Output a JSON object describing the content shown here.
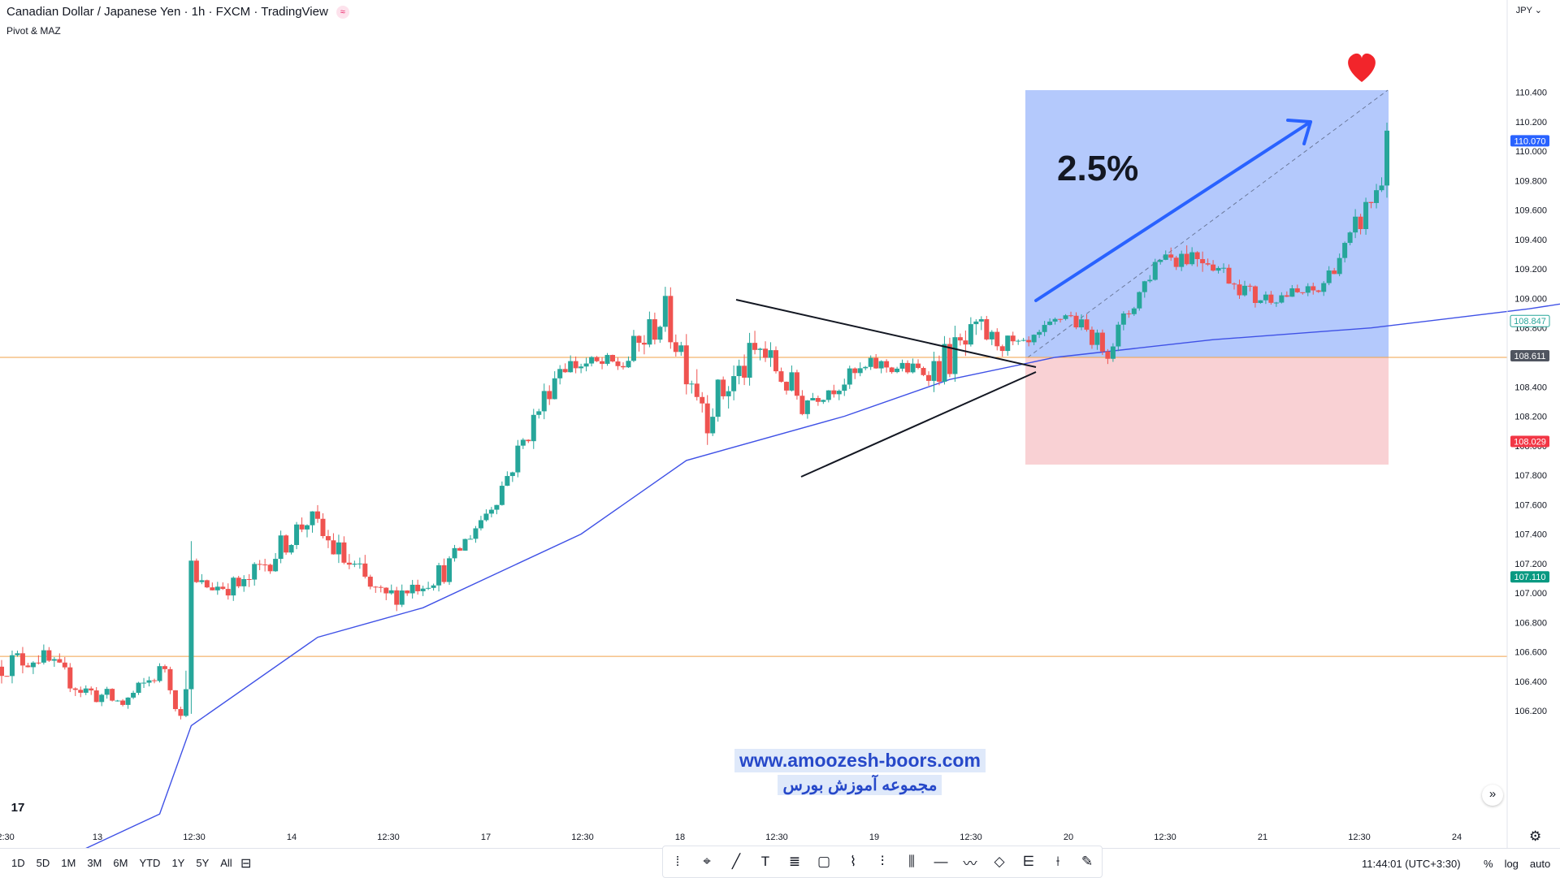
{
  "header": {
    "title": "Canadian Dollar / Japanese Yen · 1h · FXCM · TradingView",
    "indicator": "Pivot & MAZ",
    "currency": "JPY"
  },
  "bottom": {
    "ranges": [
      "1D",
      "5D",
      "1M",
      "3M",
      "6M",
      "YTD",
      "1Y",
      "5Y",
      "All"
    ],
    "clock": "11:44:01 (UTC+3:30)",
    "scale_options": [
      "%",
      "log",
      "auto"
    ]
  },
  "tools": [
    "dots-handle-icon",
    "pin-icon",
    "trendline-icon",
    "text-icon",
    "fib-icon",
    "rectangle-icon",
    "brush-icon",
    "parallel-channel-icon",
    "pitchfork-icon",
    "horizontal-line-icon",
    "path-icon",
    "ellipse-icon",
    "long-position-icon",
    "vertical-line-icon",
    "pen-icon"
  ],
  "watermark": {
    "url": "www.amoozesh-boors.com",
    "persian": "مجموعه آموزش بورس"
  },
  "annotation": {
    "percent": "2.5%"
  },
  "colors": {
    "up": "#26a69a",
    "down": "#ef5350",
    "ma": "#3f51e6",
    "hline": "#f0a24a",
    "profit": "#a7c0fb",
    "loss": "#f9d1d4",
    "arrow": "#2962ff"
  },
  "chart_data": {
    "type": "candlestick",
    "symbol": "CADJPY",
    "interval": "1h",
    "price_range": [
      106.1,
      110.5
    ],
    "y_ticks": [
      "106.200",
      "106.400",
      "106.600",
      "106.800",
      "107.000",
      "107.200",
      "107.400",
      "107.600",
      "107.800",
      "108.000",
      "108.200",
      "108.400",
      "108.600",
      "108.800",
      "109.000",
      "109.200",
      "109.400",
      "109.600",
      "109.800",
      "110.000",
      "110.200",
      "110.400"
    ],
    "x_ticks": [
      "12:30",
      "13",
      "12:30",
      "14",
      "12:30",
      "17",
      "12:30",
      "18",
      "12:30",
      "19",
      "12:30",
      "20",
      "12:30",
      "21",
      "12:30",
      "24"
    ],
    "price_labels": [
      {
        "value": "110.070",
        "color": "#2962ff"
      },
      {
        "value": "108.847",
        "color": "#ffffff",
        "text_color": "#26a69a",
        "border": "#26a69a"
      },
      {
        "value": "108.611",
        "color": "#505560"
      },
      {
        "value": "108.029",
        "color": "#f23645"
      },
      {
        "value": "107.110",
        "color": "#089981"
      }
    ],
    "horizontal_lines": [
      108.6,
      106.57
    ],
    "position": {
      "entry": 108.611,
      "target": 110.07,
      "stop": 108.029
    },
    "segments": [
      {
        "n": 8,
        "from": 106.5,
        "to": 106.58,
        "vol": 0.09
      },
      {
        "n": 8,
        "from": 106.58,
        "to": 106.35,
        "vol": 0.07
      },
      {
        "n": 8,
        "from": 106.35,
        "to": 106.25,
        "vol": 0.07
      },
      {
        "n": 8,
        "from": 106.25,
        "to": 106.5,
        "vol": 0.06
      },
      {
        "n": 3,
        "from": 106.5,
        "to": 106.15,
        "vol": 0.06
      },
      {
        "n": 2,
        "from": 106.15,
        "to": 107.05,
        "vol": 0.3
      },
      {
        "n": 10,
        "from": 107.05,
        "to": 107.05,
        "vol": 0.07
      },
      {
        "n": 12,
        "from": 107.05,
        "to": 107.5,
        "vol": 0.09
      },
      {
        "n": 14,
        "from": 107.5,
        "to": 106.95,
        "vol": 0.11
      },
      {
        "n": 12,
        "from": 106.95,
        "to": 107.15,
        "vol": 0.08
      },
      {
        "n": 10,
        "from": 107.15,
        "to": 107.65,
        "vol": 0.06
      },
      {
        "n": 12,
        "from": 107.65,
        "to": 108.55,
        "vol": 0.09
      },
      {
        "n": 12,
        "from": 108.55,
        "to": 108.55,
        "vol": 0.07
      },
      {
        "n": 8,
        "from": 108.55,
        "to": 108.9,
        "vol": 0.12
      },
      {
        "n": 8,
        "from": 108.9,
        "to": 108.25,
        "vol": 0.17
      },
      {
        "n": 10,
        "from": 108.25,
        "to": 108.65,
        "vol": 0.14
      },
      {
        "n": 8,
        "from": 108.65,
        "to": 108.3,
        "vol": 0.12
      },
      {
        "n": 14,
        "from": 108.3,
        "to": 108.55,
        "vol": 0.07
      },
      {
        "n": 10,
        "from": 108.55,
        "to": 108.5,
        "vol": 0.06
      },
      {
        "n": 10,
        "from": 108.5,
        "to": 108.75,
        "vol": 0.14
      },
      {
        "n": 8,
        "from": 108.75,
        "to": 108.65,
        "vol": 0.07
      },
      {
        "n": 8,
        "from": 108.65,
        "to": 108.9,
        "vol": 0.05
      },
      {
        "n": 8,
        "from": 108.9,
        "to": 108.65,
        "vol": 0.06
      },
      {
        "n": 10,
        "from": 108.65,
        "to": 109.3,
        "vol": 0.07
      },
      {
        "n": 8,
        "from": 109.3,
        "to": 109.3,
        "vol": 0.1
      },
      {
        "n": 10,
        "from": 109.3,
        "to": 109.0,
        "vol": 0.07
      },
      {
        "n": 12,
        "from": 109.0,
        "to": 109.05,
        "vol": 0.05
      },
      {
        "n": 6,
        "from": 109.05,
        "to": 109.4,
        "vol": 0.06
      },
      {
        "n": 6,
        "from": 109.4,
        "to": 109.8,
        "vol": 0.1
      },
      {
        "n": 1,
        "from": 109.8,
        "to": 110.3,
        "vol": 0.3
      }
    ],
    "moving_average": [
      [
        0,
        105.0
      ],
      [
        30,
        105.5
      ],
      [
        36,
        106.1
      ],
      [
        60,
        106.7
      ],
      [
        80,
        106.9
      ],
      [
        110,
        107.4
      ],
      [
        130,
        107.9
      ],
      [
        160,
        108.2
      ],
      [
        180,
        108.45
      ],
      [
        200,
        108.6
      ],
      [
        230,
        108.72
      ],
      [
        260,
        108.8
      ],
      [
        290,
        108.93
      ],
      [
        310,
        109.04
      ]
    ],
    "triangle_upper": [
      [
        108.94,
        108.6
      ]
    ],
    "triangle_lower": [
      [
        108.0,
        108.6
      ]
    ]
  }
}
